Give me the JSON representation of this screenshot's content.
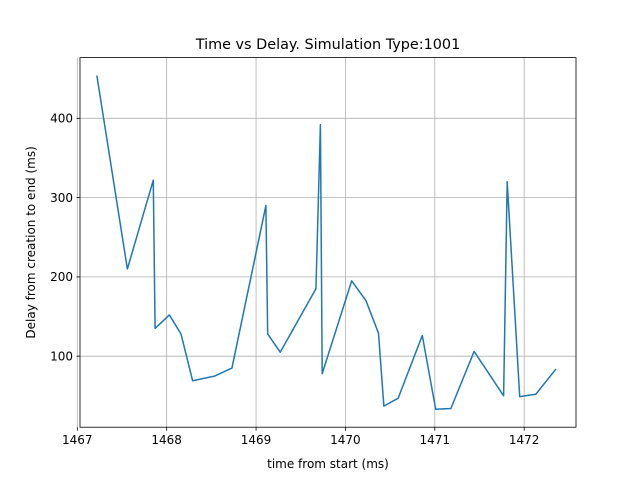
{
  "chart_data": {
    "type": "line",
    "title": "Time vs Delay. Simulation Type:1001",
    "xlabel": "time from start (ms)",
    "ylabel": "Delay from creation to end (ms)",
    "xlim": [
      1467.03,
      1472.58
    ],
    "ylim": [
      10.4,
      476.6
    ],
    "xticks": [
      1467,
      1468,
      1469,
      1470,
      1471,
      1472
    ],
    "xtick_labels": [
      "1467",
      "1468",
      "1469",
      "1470",
      "1471",
      "1472"
    ],
    "yticks": [
      100,
      200,
      300,
      400
    ],
    "ytick_labels": [
      "100",
      "200",
      "300",
      "400"
    ],
    "grid": true,
    "series": [
      {
        "color": "#1f77b4",
        "x": [
          1467.22,
          1467.56,
          1467.85,
          1467.87,
          1468.03,
          1468.16,
          1468.29,
          1468.54,
          1468.73,
          1469.11,
          1469.13,
          1469.27,
          1469.67,
          1469.72,
          1469.74,
          1470.07,
          1470.23,
          1470.37,
          1470.43,
          1470.59,
          1470.86,
          1471.01,
          1471.18,
          1471.44,
          1471.77,
          1471.81,
          1471.95,
          1472.13,
          1472.35
        ],
        "y": [
          453,
          210,
          322,
          135,
          152,
          128,
          69,
          75,
          85,
          290,
          128,
          105,
          185,
          392,
          78,
          195,
          170,
          129,
          37,
          47,
          126,
          33,
          34,
          106,
          50,
          320,
          49,
          52,
          83
        ]
      }
    ]
  }
}
